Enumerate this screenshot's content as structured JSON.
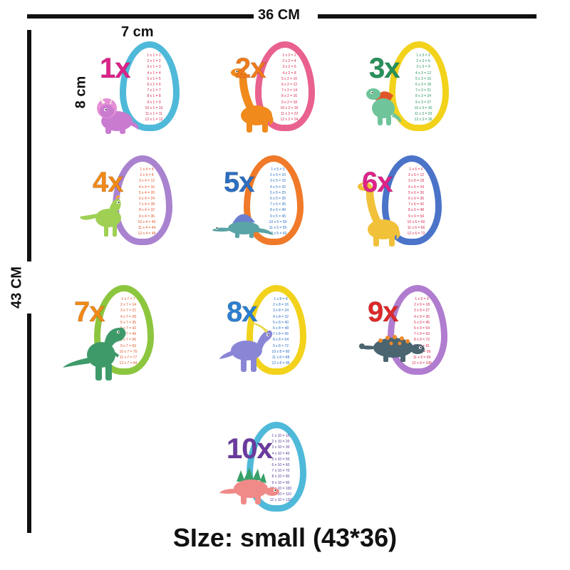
{
  "dimensions": {
    "width_label": "36 CM",
    "height_label": "43 CM",
    "card_width_label": "7 cm",
    "card_height_label": "8 cm"
  },
  "size_caption": "SIze: small (43*36)",
  "cards": [
    {
      "number": "1x",
      "ring_color": "#4fb9d9",
      "number_color": "#e0228a",
      "text_color": "#d4284c",
      "dino_color": "#c97bd0",
      "dino": "triceratops-icon",
      "lines": [
        "1 x 1 = 1",
        "2 x 1 = 2",
        "3 x 1 = 3",
        "4 x 1 = 4",
        "5 x 1 = 5",
        "6 x 1 = 6",
        "7 x 1 = 7",
        "8 x 1 = 8",
        "9 x 1 = 9",
        "10 x 1 = 10",
        "11 x 1 = 11",
        "12 x 1 = 12"
      ]
    },
    {
      "number": "2x",
      "ring_color": "#e8618f",
      "number_color": "#f07a1a",
      "text_color": "#d4284c",
      "dino_color": "#f08a1c",
      "dino": "brachiosaurus-icon",
      "lines": [
        "1 x 2 = 2",
        "2 x 2 = 4",
        "3 x 2 = 6",
        "4 x 2 = 8",
        "5 x 2 = 10",
        "6 x 2 = 12",
        "7 x 2 = 14",
        "8 x 2 = 16",
        "9 x 2 = 18",
        "10 x 2 = 20",
        "11 x 2 = 22",
        "12 x 2 = 24"
      ]
    },
    {
      "number": "3x",
      "ring_color": "#f2d21b",
      "number_color": "#27925a",
      "text_color": "#27925a",
      "dino_color": "#6fc49a",
      "dino": "spinosaurus-icon",
      "lines": [
        "1 x 3 = 3",
        "2 x 3 = 6",
        "3 x 3 = 9",
        "4 x 3 = 12",
        "5 x 3 = 15",
        "6 x 3 = 18",
        "7 x 3 = 21",
        "8 x 3 = 24",
        "9 x 3 = 27",
        "10 x 3 = 30",
        "11 x 3 = 33",
        "12 x 3 = 36"
      ]
    },
    {
      "number": "4x",
      "ring_color": "#a983cf",
      "number_color": "#f28a16",
      "text_color": "#e0552a",
      "dino_color": "#9fd054",
      "dino": "dilophosaurus-icon",
      "lines": [
        "1 x 4 = 4",
        "2 x 4 = 8",
        "3 x 4 = 12",
        "4 x 4 = 16",
        "5 x 4 = 20",
        "6 x 4 = 24",
        "7 x 4 = 28",
        "8 x 4 = 32",
        "9 x 4 = 36",
        "10 x 4 = 40",
        "11 x 4 = 44",
        "12 x 4 = 48"
      ]
    },
    {
      "number": "5x",
      "ring_color": "#f07a2a",
      "number_color": "#2b6fc2",
      "text_color": "#2b6fc2",
      "dino_color": "#5aa3a6",
      "dino": "dimetrodon-icon",
      "lines": [
        "1 x 5 = 5",
        "2 x 5 = 10",
        "3 x 5 = 15",
        "4 x 5 = 20",
        "5 x 5 = 25",
        "6 x 5 = 30",
        "7 x 5 = 35",
        "8 x 5 = 40",
        "9 x 5 = 45",
        "10 x 5 = 50",
        "11 x 5 = 55",
        "12 x 5 = 60"
      ]
    },
    {
      "number": "6x",
      "ring_color": "#4b74c9",
      "number_color": "#e0228a",
      "text_color": "#d4284c",
      "dino_color": "#f2c13a",
      "dino": "brachiosaurus-icon",
      "lines": [
        "1 x 6 = 6",
        "2 x 6 = 12",
        "3 x 6 = 18",
        "4 x 6 = 24",
        "5 x 6 = 30",
        "6 x 6 = 36",
        "7 x 6 = 42",
        "8 x 6 = 48",
        "9 x 6 = 54",
        "10 x 6 = 60",
        "11 x 6 = 66",
        "12 x 6 = 72"
      ]
    },
    {
      "number": "7x",
      "ring_color": "#8cc63f",
      "number_color": "#f28a16",
      "text_color": "#e0552a",
      "dino_color": "#3f9a6a",
      "dino": "trex-icon",
      "lines": [
        "1 x 7 = 7",
        "2 x 7 = 14",
        "3 x 7 = 21",
        "4 x 7 = 28",
        "5 x 7 = 35",
        "6 x 7 = 42",
        "7 x 7 = 49",
        "8 x 7 = 56",
        "9 x 7 = 63",
        "10 x 7 = 70",
        "11 x 7 = 77",
        "12 x 7 = 84"
      ]
    },
    {
      "number": "8x",
      "ring_color": "#f2d21b",
      "number_color": "#2b7fd0",
      "text_color": "#2b6fc2",
      "dino_color": "#8a86d6",
      "dino": "parasaurolophus-icon",
      "lines": [
        "1 x 8 = 8",
        "2 x 8 = 16",
        "3 x 8 = 24",
        "4 x 8 = 32",
        "5 x 8 = 40",
        "6 x 8 = 48",
        "7 x 8 = 56",
        "8 x 8 = 64",
        "9 x 8 = 72",
        "10 x 8 = 80",
        "11 x 8 = 88",
        "12 x 8 = 96"
      ]
    },
    {
      "number": "9x",
      "ring_color": "#b07ccf",
      "number_color": "#e02828",
      "text_color": "#d4284c",
      "dino_color": "#4a6470",
      "dino": "ankylosaurus-icon",
      "lines": [
        "1 x 9 = 9",
        "2 x 9 = 18",
        "3 x 9 = 27",
        "4 x 9 = 36",
        "5 x 9 = 45",
        "6 x 9 = 54",
        "7 x 9 = 63",
        "8 x 9 = 72",
        "9 x 9 = 81",
        "10 x 9 = 90",
        "11 x 9 = 99",
        "12 x 9 = 108"
      ]
    },
    {
      "number": "10x",
      "ring_color": "#4fb9d9",
      "number_color": "#6a3aa0",
      "text_color": "#5a3a98",
      "dino_color": "#f08a88",
      "dino": "stegosaurus-icon",
      "lines": [
        "1 x 10 = 10",
        "2 x 10 = 20",
        "3 x 10 = 30",
        "4 x 10 = 40",
        "5 x 10 = 50",
        "6 x 10 = 60",
        "7 x 10 = 70",
        "8 x 10 = 80",
        "9 x 10 = 90",
        "10 x 10 = 100",
        "11 x 10 = 110",
        "12 x 10 = 120"
      ]
    }
  ]
}
